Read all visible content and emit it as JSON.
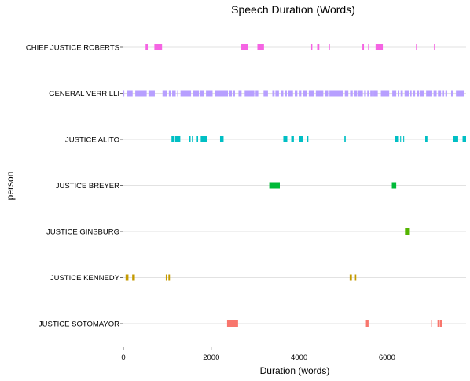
{
  "chart_data": {
    "type": "timeline",
    "title": "Speech Duration (Words)",
    "xlabel": "Duration (words)",
    "ylabel": "person",
    "xlim": [
      0,
      7800
    ],
    "xticks": [
      0,
      2000,
      4000,
      6000
    ],
    "xtick_labels": [
      "0",
      "2000",
      "4000",
      "6000"
    ],
    "grid": true,
    "legend": "none",
    "people": [
      {
        "name": "CHIEF JUSTICE ROBERTS",
        "color": "#F564E3",
        "segments": [
          [
            505,
            555
          ],
          [
            705,
            880
          ],
          [
            2675,
            2840
          ],
          [
            3050,
            3200
          ],
          [
            4275,
            4300
          ],
          [
            4410,
            4460
          ],
          [
            4670,
            4700
          ],
          [
            5440,
            5475
          ],
          [
            5570,
            5595
          ],
          [
            5740,
            5905
          ],
          [
            6660,
            6690
          ],
          [
            7070,
            7090
          ]
        ]
      },
      {
        "name": "GENERAL VERRILLI",
        "color": "#B79FFF",
        "segments": [
          [
            0,
            20
          ],
          [
            90,
            210
          ],
          [
            270,
            530
          ],
          [
            570,
            715
          ],
          [
            890,
            1000
          ],
          [
            1035,
            1075
          ],
          [
            1110,
            1190
          ],
          [
            1225,
            1245
          ],
          [
            1300,
            1540
          ],
          [
            1580,
            1720
          ],
          [
            1750,
            1830
          ],
          [
            1880,
            2030
          ],
          [
            2080,
            2380
          ],
          [
            2410,
            2470
          ],
          [
            2490,
            2540
          ],
          [
            2620,
            2690
          ],
          [
            2760,
            2980
          ],
          [
            3010,
            3070
          ],
          [
            3190,
            3290
          ],
          [
            3390,
            3440
          ],
          [
            3460,
            3540
          ],
          [
            3580,
            3640
          ],
          [
            3670,
            3720
          ],
          [
            3750,
            3860
          ],
          [
            3900,
            3960
          ],
          [
            4010,
            4050
          ],
          [
            4090,
            4170
          ],
          [
            4220,
            4340
          ],
          [
            4380,
            4550
          ],
          [
            4580,
            4660
          ],
          [
            4690,
            5000
          ],
          [
            5040,
            5120
          ],
          [
            5160,
            5220
          ],
          [
            5250,
            5320
          ],
          [
            5340,
            5450
          ],
          [
            5480,
            5520
          ],
          [
            5550,
            5600
          ],
          [
            5620,
            5670
          ],
          [
            5690,
            5790
          ],
          [
            5860,
            6050
          ],
          [
            6120,
            6210
          ],
          [
            6260,
            6280
          ],
          [
            6310,
            6360
          ],
          [
            6400,
            6500
          ],
          [
            6530,
            6560
          ],
          [
            6590,
            6640
          ],
          [
            6690,
            6730
          ],
          [
            6760,
            6850
          ],
          [
            6890,
            7030
          ],
          [
            7060,
            7130
          ],
          [
            7160,
            7230
          ],
          [
            7270,
            7300
          ],
          [
            7330,
            7370
          ],
          [
            7460,
            7510
          ],
          [
            7570,
            7750
          ]
        ]
      },
      {
        "name": "JUSTICE ALITO",
        "color": "#00BFC4",
        "segments": [
          [
            1095,
            1160
          ],
          [
            1175,
            1295
          ],
          [
            1500,
            1530
          ],
          [
            1560,
            1580
          ],
          [
            1670,
            1700
          ],
          [
            1760,
            1910
          ],
          [
            2200,
            2280
          ],
          [
            3640,
            3730
          ],
          [
            3820,
            3880
          ],
          [
            4000,
            4080
          ],
          [
            4170,
            4210
          ],
          [
            5030,
            5060
          ],
          [
            6180,
            6270
          ],
          [
            6300,
            6320
          ],
          [
            6370,
            6390
          ],
          [
            6870,
            6920
          ],
          [
            7510,
            7620
          ],
          [
            7720,
            7800
          ]
        ]
      },
      {
        "name": "JUSTICE BREYER",
        "color": "#00BA38",
        "secondary_color": "#00C08B",
        "segments": [
          [
            3320,
            3560
          ],
          [
            6110,
            6210
          ]
        ]
      },
      {
        "name": "JUSTICE GINSBURG",
        "color": "#53B400",
        "segments": [
          [
            6410,
            6520
          ]
        ]
      },
      {
        "name": "JUSTICE KENNEDY",
        "color": "#C49A00",
        "segments": [
          [
            50,
            115
          ],
          [
            200,
            260
          ],
          [
            965,
            1000
          ],
          [
            1025,
            1060
          ],
          [
            5150,
            5200
          ],
          [
            5270,
            5300
          ]
        ]
      },
      {
        "name": "JUSTICE SOTOMAYOR",
        "color": "#F8766D",
        "segments": [
          [
            2360,
            2610
          ],
          [
            5520,
            5580
          ],
          [
            7000,
            7020
          ],
          [
            7150,
            7180
          ],
          [
            7200,
            7260
          ]
        ]
      }
    ]
  }
}
